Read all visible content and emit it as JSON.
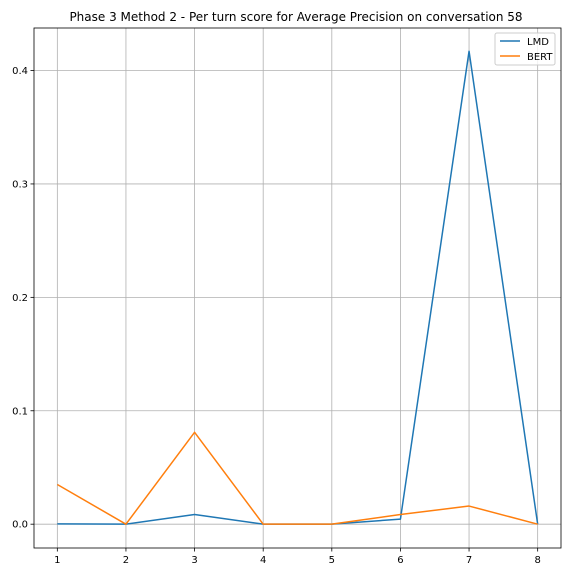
{
  "chart_data": {
    "type": "line",
    "title": "Phase 3 Method 2 - Per turn score for Average Precision on conversation 58",
    "xlabel": "",
    "ylabel": "",
    "x": [
      1,
      2,
      3,
      4,
      5,
      6,
      7,
      8
    ],
    "xlim": [
      0.66,
      8.34
    ],
    "ylim": [
      -0.021,
      0.4375
    ],
    "xticks": [
      "1",
      "2",
      "3",
      "4",
      "5",
      "6",
      "7",
      "8"
    ],
    "yticks": [
      "0.0",
      "0.1",
      "0.2",
      "0.3",
      "0.4"
    ],
    "grid": true,
    "legend_position": "top-right",
    "series": [
      {
        "name": "LMD",
        "color": "#1f77b4",
        "values": [
          0.0003,
          0.0,
          0.0085,
          0.0,
          0.0,
          0.0045,
          0.417,
          0.0
        ]
      },
      {
        "name": "BERT",
        "color": "#ff7f0e",
        "values": [
          0.035,
          0.0,
          0.081,
          0.0,
          0.0,
          0.0085,
          0.016,
          0.0
        ]
      }
    ]
  }
}
